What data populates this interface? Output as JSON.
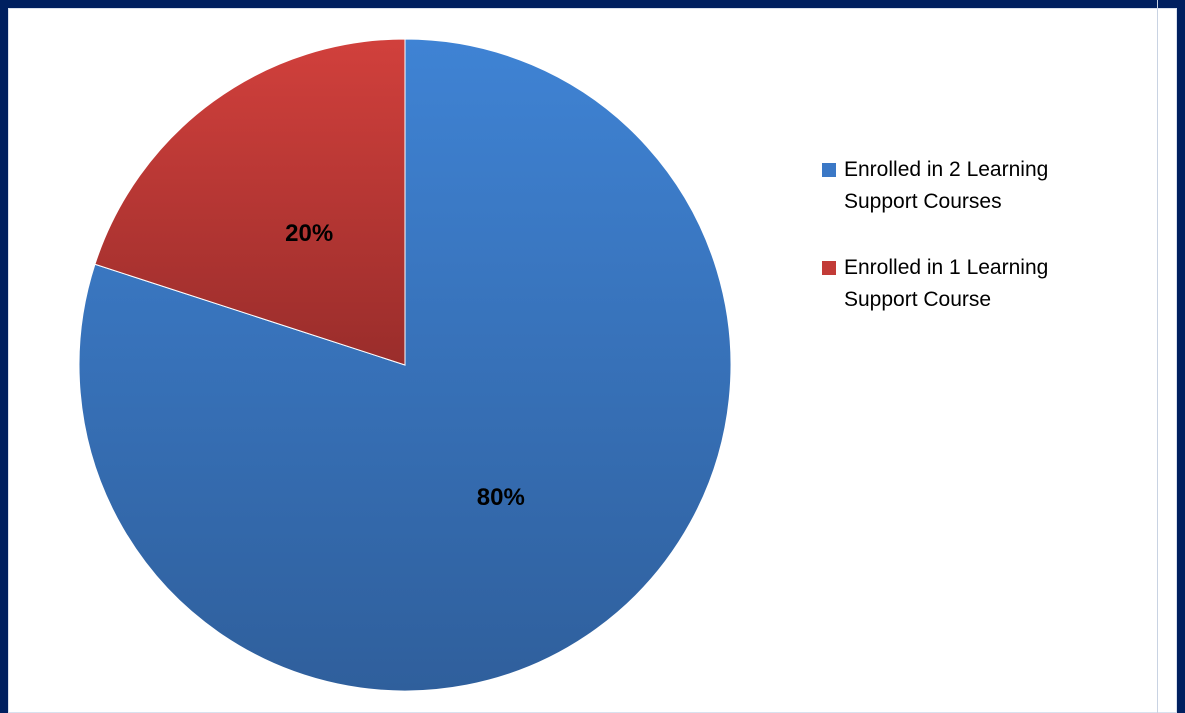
{
  "chart_data": {
    "type": "pie",
    "categories": [
      "Enrolled in 2 Learning Support Courses",
      "Enrolled in 1 Learning Support Course"
    ],
    "values": [
      80,
      20
    ],
    "data_labels": [
      "80%",
      "20%"
    ],
    "colors": [
      "#3b78c6",
      "#c23b37"
    ],
    "legend_position": "right"
  },
  "legend": {
    "items": [
      {
        "label_line1": "Enrolled in 2 Learning",
        "label_line2": "Support Courses",
        "color": "#3b78c6"
      },
      {
        "label_line1": "Enrolled in 1 Learning",
        "label_line2": "Support Course",
        "color": "#c23b37"
      }
    ]
  }
}
